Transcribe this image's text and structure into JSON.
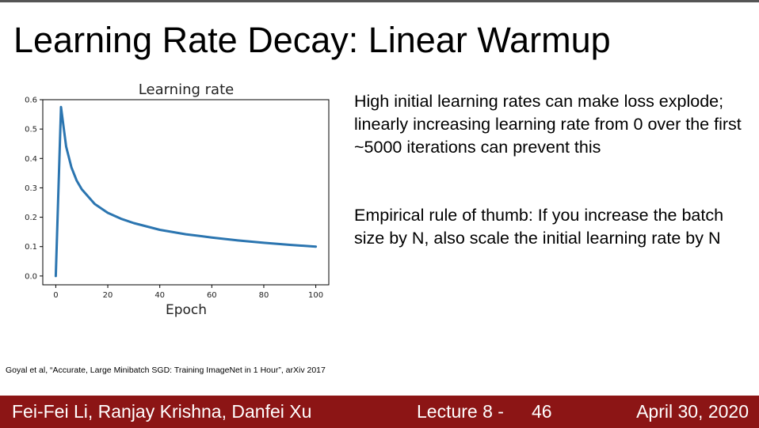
{
  "slide": {
    "title": "Learning Rate Decay: Linear Warmup",
    "paragraphs": [
      "High initial learning rates can make loss explode; linearly increasing learning rate from 0 over the first ~5000 iterations can prevent this",
      "Empirical rule of thumb: If you increase the batch size by N, also scale the initial learning rate by N"
    ],
    "citation": "Goyal et al, “Accurate, Large Minibatch SGD: Training ImageNet in 1 Hour”, arXiv 2017"
  },
  "footer": {
    "authors": "Fei-Fei Li, Ranjay Krishna, Danfei Xu",
    "lecture": "Lecture 8 -",
    "slide_number": "46",
    "date": "April 30, 2020"
  },
  "colors": {
    "footer_bg": "#8c1515",
    "line": "#2b75b0"
  },
  "chart_data": {
    "type": "line",
    "title": "Learning rate",
    "xlabel": "Epoch",
    "ylabel": "",
    "xlim": [
      -5,
      105
    ],
    "ylim": [
      -0.03,
      0.6
    ],
    "x_ticks": [
      0,
      20,
      40,
      60,
      80,
      100
    ],
    "y_ticks": [
      0.0,
      0.1,
      0.2,
      0.3,
      0.4,
      0.5,
      0.6
    ],
    "x_tick_labels": [
      "0",
      "20",
      "40",
      "60",
      "80",
      "100"
    ],
    "y_tick_labels": [
      "0.0",
      "0.1",
      "0.2",
      "0.3",
      "0.4",
      "0.5",
      "0.6"
    ],
    "grid": false,
    "series": [
      {
        "x": [
          0,
          2,
          4,
          6,
          8,
          10,
          15,
          20,
          25,
          30,
          40,
          50,
          60,
          70,
          80,
          90,
          100
        ],
        "y": [
          0.0,
          0.575,
          0.44,
          0.37,
          0.325,
          0.295,
          0.245,
          0.215,
          0.195,
          0.18,
          0.157,
          0.142,
          0.131,
          0.121,
          0.113,
          0.106,
          0.1
        ],
        "color": "#2b75b0"
      }
    ]
  }
}
